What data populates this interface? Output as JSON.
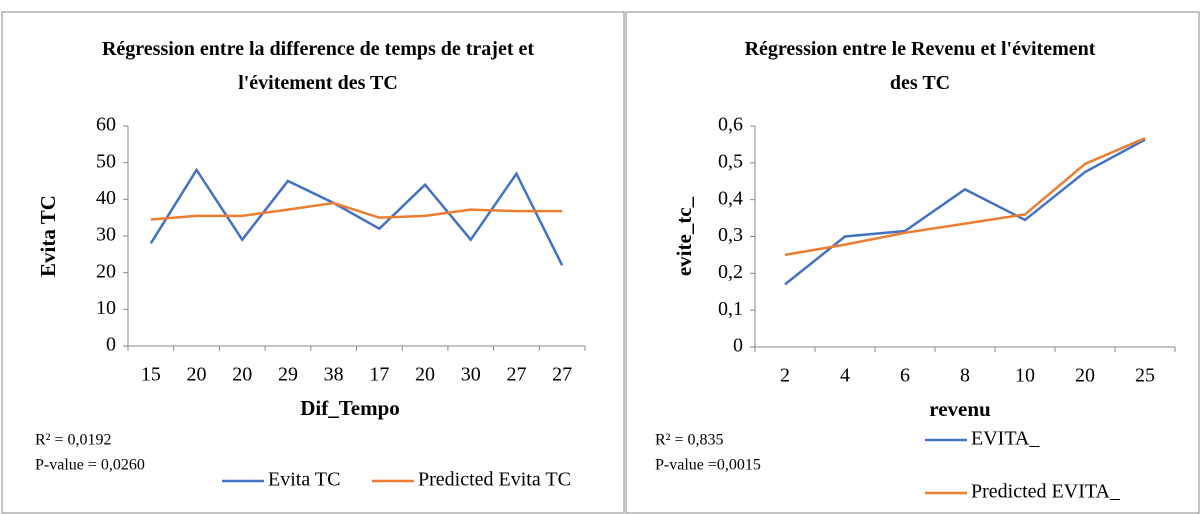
{
  "chart_data": [
    {
      "type": "line",
      "title": "Régression entre la difference de temps de trajet et l'évitement des TC",
      "x_label": "Dif_Tempo",
      "y_label": "Evita TC",
      "categories": [
        "15",
        "20",
        "20",
        "29",
        "38",
        "17",
        "20",
        "30",
        "27",
        "27"
      ],
      "series": [
        {
          "name": "Evita TC",
          "color": "#4472c4",
          "values": [
            28,
            48,
            29,
            45,
            39,
            32,
            44,
            29,
            47,
            22
          ]
        },
        {
          "name": "Predicted Evita TC",
          "color": "#ed7d31",
          "values": [
            34.5,
            35.5,
            35.5,
            37.2,
            39,
            35,
            35.5,
            37.2,
            36.8,
            36.8
          ]
        }
      ],
      "ylim": [
        0,
        60
      ],
      "yticks": [
        0,
        10,
        20,
        30,
        40,
        50,
        60
      ],
      "annotations": [
        "R² = 0,0192",
        "P-value = 0,0260"
      ],
      "legend": "horizontal"
    },
    {
      "type": "line",
      "title": "Régression entre le Revenu et l'évitement des TC",
      "x_label": "revenu",
      "y_label": "evite_tc_",
      "categories": [
        "2",
        "4",
        "6",
        "8",
        "10",
        "20",
        "25"
      ],
      "series": [
        {
          "name": "EVITA_",
          "color": "#4472c4",
          "values": [
            0.17,
            0.3,
            0.315,
            0.428,
            0.345,
            0.475,
            0.563
          ]
        },
        {
          "name": "Predicted EVITA_",
          "color": "#ed7d31",
          "values": [
            0.25,
            0.278,
            0.31,
            0.335,
            0.36,
            0.497,
            0.567
          ]
        }
      ],
      "ylim": [
        0,
        0.6
      ],
      "yticks": [
        0,
        {
          "value": 0.1,
          "label": "0,1"
        },
        {
          "value": 0.2,
          "label": "0,2"
        },
        {
          "value": 0.3,
          "label": "0,3"
        },
        {
          "value": 0.4,
          "label": "0,4"
        },
        {
          "value": 0.5,
          "label": "0,5"
        },
        {
          "value": 0.6,
          "label": "0,6"
        }
      ],
      "annotations": [
        "R² = 0,835",
        "P-value =0,0015"
      ],
      "legend": "vertical"
    }
  ]
}
